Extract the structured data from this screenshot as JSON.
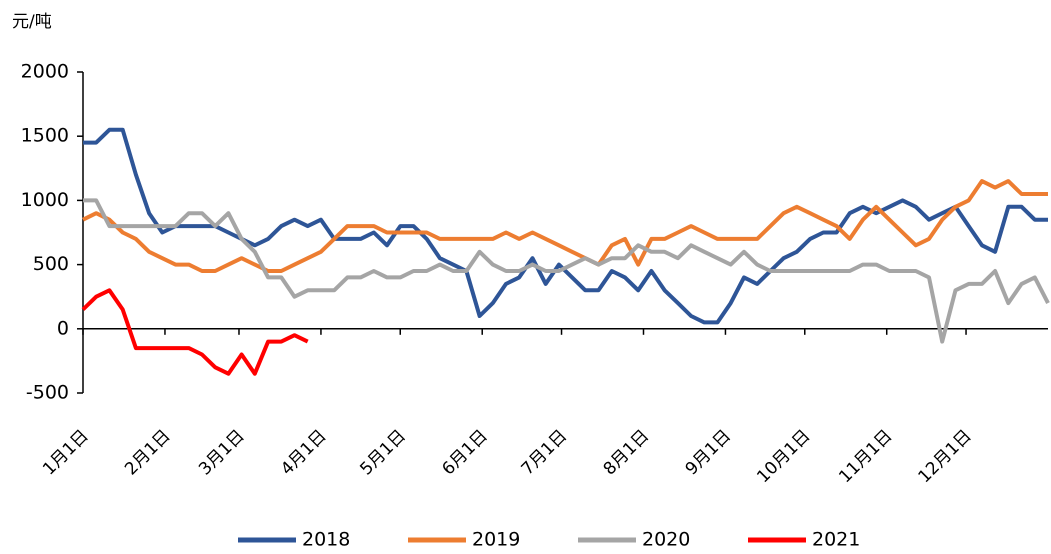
{
  "chart_data": {
    "type": "line",
    "y_label": "元/吨",
    "x": [
      1,
      6,
      11,
      16,
      21,
      26,
      31,
      36,
      41,
      46,
      51,
      56,
      61,
      66,
      71,
      76,
      81,
      86,
      91,
      96,
      101,
      106,
      111,
      116,
      121,
      126,
      131,
      136,
      141,
      146,
      151,
      156,
      161,
      166,
      171,
      176,
      181,
      186,
      191,
      196,
      201,
      206,
      211,
      216,
      221,
      226,
      231,
      236,
      241,
      246,
      251,
      256,
      261,
      266,
      271,
      276,
      281,
      286,
      291,
      296,
      301,
      306,
      311,
      316,
      321,
      326,
      331,
      336,
      341,
      346,
      351,
      356,
      361,
      366
    ],
    "xlim": [
      1,
      366
    ],
    "xticks": [
      {
        "value": 1,
        "label": "1月1日"
      },
      {
        "value": 32,
        "label": "2月1日"
      },
      {
        "value": 60,
        "label": "3月1日"
      },
      {
        "value": 91,
        "label": "4月1日"
      },
      {
        "value": 121,
        "label": "5月1日"
      },
      {
        "value": 152,
        "label": "6月1日"
      },
      {
        "value": 182,
        "label": "7月1日"
      },
      {
        "value": 213,
        "label": "8月1日"
      },
      {
        "value": 244,
        "label": "9月1日"
      },
      {
        "value": 274,
        "label": "10月1日"
      },
      {
        "value": 305,
        "label": "11月1日"
      },
      {
        "value": 335,
        "label": "12月1日"
      }
    ],
    "ylim": [
      -500,
      2000
    ],
    "yticks": [
      -500,
      0,
      500,
      1000,
      1500,
      2000
    ],
    "series": [
      {
        "name": "2018",
        "color": "#2e5597",
        "values": [
          1450,
          1450,
          1550,
          1550,
          1200,
          900,
          750,
          800,
          800,
          800,
          800,
          750,
          700,
          650,
          700,
          800,
          850,
          800,
          850,
          700,
          700,
          700,
          750,
          650,
          800,
          800,
          700,
          550,
          500,
          450,
          100,
          200,
          350,
          400,
          550,
          350,
          500,
          400,
          300,
          300,
          450,
          400,
          300,
          450,
          300,
          200,
          100,
          50,
          50,
          200,
          400,
          350,
          450,
          550,
          600,
          700,
          750,
          750,
          900,
          950,
          900,
          950,
          1000,
          950,
          850,
          900,
          950,
          800,
          650,
          600,
          950,
          950,
          850,
          850
        ]
      },
      {
        "name": "2019",
        "color": "#ed7d31",
        "values": [
          850,
          900,
          850,
          750,
          700,
          600,
          550,
          500,
          500,
          450,
          450,
          500,
          550,
          500,
          450,
          450,
          500,
          550,
          600,
          700,
          800,
          800,
          800,
          750,
          750,
          750,
          750,
          700,
          700,
          700,
          700,
          700,
          750,
          700,
          750,
          700,
          650,
          600,
          550,
          500,
          650,
          700,
          500,
          700,
          700,
          750,
          800,
          750,
          700,
          700,
          700,
          700,
          800,
          900,
          950,
          900,
          850,
          800,
          700,
          850,
          950,
          850,
          750,
          650,
          700,
          850,
          950,
          1000,
          1150,
          1100,
          1150,
          1050,
          1050,
          1050
        ]
      },
      {
        "name": "2020",
        "color": "#a5a5a5",
        "values": [
          1000,
          1000,
          800,
          800,
          800,
          800,
          800,
          800,
          900,
          900,
          800,
          900,
          700,
          600,
          400,
          400,
          250,
          300,
          300,
          300,
          400,
          400,
          450,
          400,
          400,
          450,
          450,
          500,
          450,
          450,
          600,
          500,
          450,
          450,
          500,
          450,
          450,
          500,
          550,
          500,
          550,
          550,
          650,
          600,
          600,
          550,
          650,
          600,
          550,
          500,
          600,
          500,
          450,
          450,
          450,
          450,
          450,
          450,
          450,
          500,
          500,
          450,
          450,
          450,
          400,
          -100,
          300,
          350,
          350,
          450,
          200,
          350,
          400,
          200
        ]
      },
      {
        "name": "2021",
        "color": "#ff0000",
        "values": [
          150,
          250,
          300,
          150,
          -150,
          -150,
          -150,
          -150,
          -150,
          -200,
          -300,
          -350,
          -200,
          -350,
          -100,
          -100,
          -50,
          -100,
          null,
          null,
          null,
          null,
          null,
          null,
          null,
          null,
          null,
          null,
          null,
          null,
          null,
          null,
          null,
          null,
          null,
          null,
          null,
          null,
          null,
          null,
          null,
          null,
          null,
          null,
          null,
          null,
          null,
          null,
          null,
          null,
          null,
          null,
          null,
          null,
          null,
          null,
          null,
          null,
          null,
          null,
          null,
          null,
          null,
          null,
          null,
          null,
          null,
          null,
          null,
          null,
          null,
          null,
          null,
          null
        ]
      }
    ]
  }
}
